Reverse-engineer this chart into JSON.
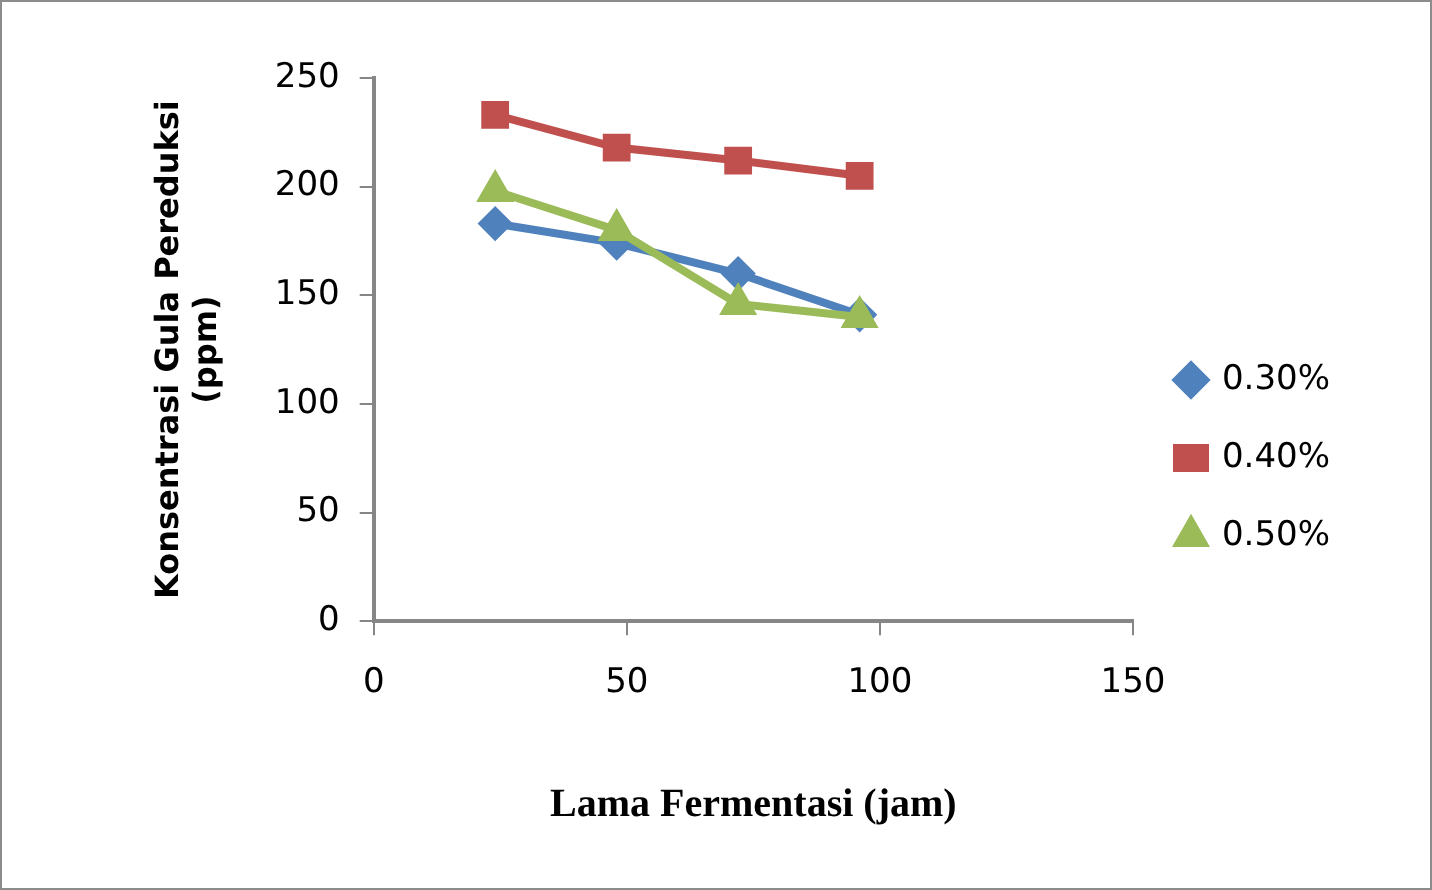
{
  "chart_data": {
    "type": "line",
    "xlabel": "Lama Fermentasi (jam)",
    "ylabel": "Konsentrasi Gula Pereduksi (ppm)",
    "x": [
      24,
      48,
      72,
      96
    ],
    "series": [
      {
        "name": "0.30%",
        "color": "#4f81bd",
        "marker": "diamond",
        "values": [
          183,
          174,
          160,
          141
        ]
      },
      {
        "name": "0.40%",
        "color": "#c0504d",
        "marker": "square",
        "values": [
          233,
          218,
          212,
          205
        ]
      },
      {
        "name": "0.50%",
        "color": "#9bbb59",
        "marker": "triangle",
        "values": [
          198,
          180,
          146,
          140
        ]
      }
    ],
    "xlim": [
      0,
      150
    ],
    "xticks": [
      0,
      50,
      100,
      150
    ],
    "ylim": [
      0,
      250
    ],
    "yticks": [
      0,
      50,
      100,
      150,
      200,
      250
    ],
    "grid": false,
    "legend": "right",
    "line_style": "solid"
  }
}
